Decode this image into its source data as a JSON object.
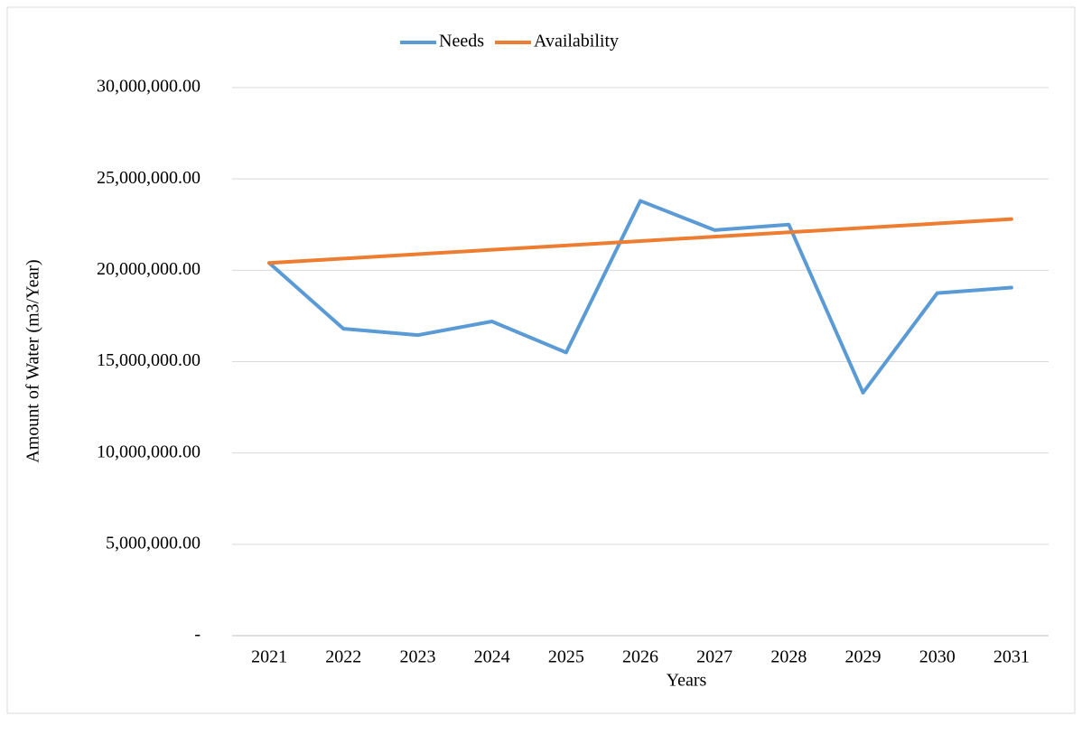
{
  "chart_data": {
    "type": "line",
    "x_label": "Years",
    "y_label": "Amount of Water (m3/Year)",
    "categories": [
      "2021",
      "2022",
      "2023",
      "2024",
      "2025",
      "2026",
      "2027",
      "2028",
      "2029",
      "2030",
      "2031"
    ],
    "series": [
      {
        "name": "Needs",
        "color": "#5b9bd5",
        "values": [
          20400000,
          16800000,
          16450000,
          17200000,
          15500000,
          23800000,
          22200000,
          22500000,
          13300000,
          18750000,
          19050000
        ]
      },
      {
        "name": "Availability",
        "color": "#ed7d31",
        "values": [
          20400000,
          20640000,
          20880000,
          21120000,
          21360000,
          21600000,
          21840000,
          22080000,
          22320000,
          22560000,
          22800000
        ]
      }
    ],
    "ylim": [
      0,
      30000000
    ],
    "yticks": [
      {
        "value": 0,
        "label": "-"
      },
      {
        "value": 5000000,
        "label": "5,000,000.00"
      },
      {
        "value": 10000000,
        "label": "10,000,000.00"
      },
      {
        "value": 15000000,
        "label": "15,000,000.00"
      },
      {
        "value": 20000000,
        "label": "20,000,000.00"
      },
      {
        "value": 25000000,
        "label": "25,000,000.00"
      },
      {
        "value": 30000000,
        "label": "30,000,000.00"
      }
    ],
    "grid": true,
    "legend": "top"
  }
}
